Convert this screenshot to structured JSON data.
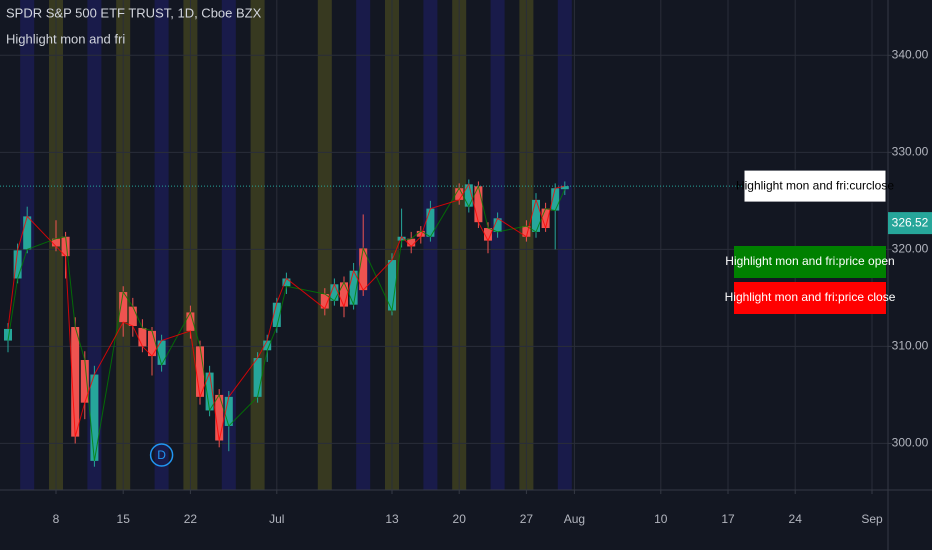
{
  "chart_data": {
    "type": "candlestick",
    "title": "SPDR S&P 500 ETF TRUST, 1D, Cboe BZX",
    "subtitle": "Highlight mon and fri",
    "x": [
      "06-03",
      "06-04",
      "06-05",
      "06-08",
      "06-09",
      "06-10",
      "06-11",
      "06-12",
      "06-15",
      "06-16",
      "06-17",
      "06-18",
      "06-19",
      "06-22",
      "06-23",
      "06-24",
      "06-25",
      "06-26",
      "06-29",
      "06-30",
      "07-01",
      "07-02",
      "07-06",
      "07-07",
      "07-08",
      "07-09",
      "07-10",
      "07-13",
      "07-14",
      "07-15",
      "07-16",
      "07-17",
      "07-20",
      "07-21",
      "07-22",
      "07-23",
      "07-24",
      "07-27",
      "07-28",
      "07-29",
      "07-30",
      "07-31"
    ],
    "open": [
      310.6,
      317.0,
      320.0,
      321.1,
      321.3,
      312.0,
      308.6,
      298.2,
      315.6,
      314.1,
      311.9,
      311.6,
      308.1,
      313.5,
      310.0,
      303.4,
      305.0,
      301.8,
      304.8,
      309.6,
      312.0,
      316.2,
      315.4,
      314.7,
      316.6,
      314.3,
      320.1,
      313.7,
      320.9,
      321.1,
      321.9,
      321.3,
      326.3,
      324.4,
      326.5,
      322.2,
      321.8,
      322.4,
      321.8,
      324.2,
      324.0,
      326.2
    ],
    "high": [
      312.4,
      320.6,
      324.4,
      323.0,
      321.8,
      313.0,
      309.5,
      308.0,
      316.2,
      315.0,
      312.8,
      312.0,
      311.2,
      314.2,
      310.6,
      308.0,
      305.6,
      305.4,
      309.4,
      311.2,
      315.0,
      317.6,
      316.0,
      317.0,
      317.2,
      318.6,
      323.6,
      319.6,
      324.2,
      321.8,
      322.4,
      325.0,
      326.8,
      327.2,
      327.0,
      322.8,
      323.8,
      323.0,
      325.8,
      324.8,
      326.8,
      327.0
    ],
    "low": [
      309.4,
      316.5,
      319.6,
      319.8,
      317.0,
      300.0,
      302.5,
      297.6,
      311.0,
      311.0,
      309.4,
      307.0,
      307.4,
      310.8,
      304.0,
      302.8,
      299.6,
      299.2,
      304.2,
      308.4,
      311.4,
      315.4,
      313.2,
      314.2,
      313.0,
      313.8,
      315.2,
      313.2,
      320.2,
      319.6,
      320.6,
      320.8,
      324.6,
      323.8,
      322.2,
      319.6,
      321.2,
      320.8,
      321.2,
      321.8,
      320.0,
      325.6
    ],
    "close": [
      311.8,
      319.9,
      323.4,
      320.3,
      319.3,
      300.7,
      304.2,
      307.1,
      312.5,
      312.1,
      310.0,
      309.0,
      310.6,
      311.6,
      304.8,
      307.3,
      300.3,
      304.8,
      308.8,
      310.6,
      314.5,
      317.0,
      313.9,
      316.4,
      314.1,
      317.8,
      315.8,
      318.9,
      321.3,
      320.3,
      321.3,
      324.2,
      325.1,
      326.7,
      322.8,
      320.9,
      323.2,
      321.3,
      325.1,
      322.2,
      326.3,
      326.52
    ],
    "up_color": "#26a69a",
    "down_color": "#ef5350",
    "ylim": [
      295.2,
      345.7
    ],
    "yticks": [
      {
        "value": 300,
        "label": "300.00"
      },
      {
        "value": 310,
        "label": "310.00"
      },
      {
        "value": 320,
        "label": "320.00"
      },
      {
        "value": 330,
        "label": "330.00"
      },
      {
        "value": 340,
        "label": "340.00"
      }
    ],
    "xticks": [
      {
        "value": "06-08",
        "label": "8"
      },
      {
        "value": "06-15",
        "label": "15"
      },
      {
        "value": "06-22",
        "label": "22"
      },
      {
        "value": "07-01",
        "label": "Jul"
      },
      {
        "value": "07-13",
        "label": "13"
      },
      {
        "value": "07-20",
        "label": "20"
      },
      {
        "value": "07-27",
        "label": "27"
      },
      {
        "value": "08-01",
        "label": "Aug"
      },
      {
        "value": "08-10",
        "label": "10"
      },
      {
        "value": "08-17",
        "label": "17"
      },
      {
        "value": "08-24",
        "label": "24"
      },
      {
        "value": "09-01",
        "label": "Sep"
      }
    ],
    "grid": true,
    "last_price": 326.52,
    "series_labels": [
      {
        "name": "Highlight mon and fri:curclose",
        "color": "#ffffff"
      },
      {
        "name": "Highlight mon and fri:price open",
        "color": "#008000"
      },
      {
        "name": "Highlight mon and fri:price close",
        "color": "#ff0000"
      }
    ],
    "event_marker": {
      "x": "06-19",
      "label": "D"
    },
    "highlight": {
      "monday_color": "#55551f",
      "friday_color": "#1f1f6b"
    }
  }
}
